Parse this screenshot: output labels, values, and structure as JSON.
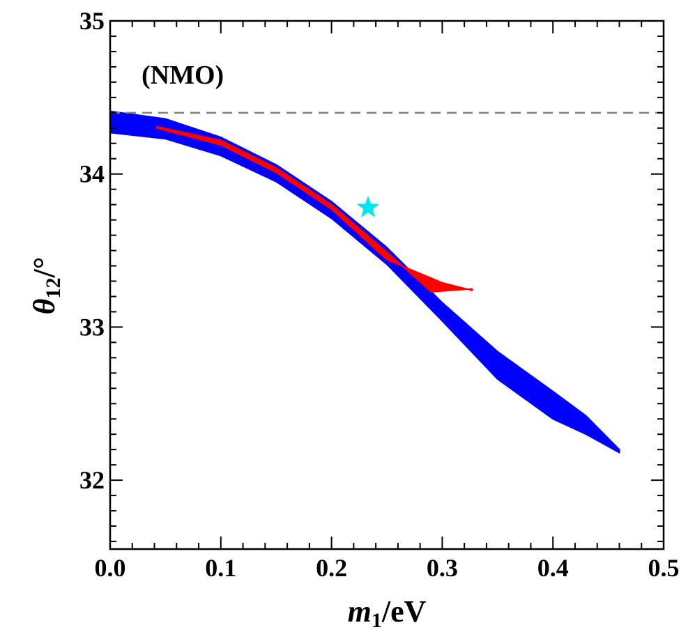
{
  "chart_data": {
    "type": "scatter",
    "xlabel": {
      "main": "m",
      "sub": "1",
      "unit": "/eV"
    },
    "ylabel": {
      "main": "θ",
      "sub": "12",
      "unit": "/°"
    },
    "xlim": [
      0.0,
      0.5
    ],
    "ylim": [
      31.55,
      35.0
    ],
    "x_ticks": [
      "0.0",
      "0.1",
      "0.2",
      "0.3",
      "0.4",
      "0.5"
    ],
    "y_ticks": [
      "32",
      "33",
      "34",
      "35"
    ],
    "annotation": "(NMO)",
    "grid": false,
    "reference_line": {
      "y": 34.4,
      "style": "dashed",
      "color": "#808080"
    },
    "series": [
      {
        "color": "#0000ff",
        "kind": "band",
        "upper": [
          [
            0.0,
            34.41
          ],
          [
            0.05,
            34.36
          ],
          [
            0.1,
            34.24
          ],
          [
            0.15,
            34.06
          ],
          [
            0.2,
            33.82
          ],
          [
            0.25,
            33.52
          ],
          [
            0.3,
            33.16
          ],
          [
            0.35,
            32.84
          ],
          [
            0.4,
            32.58
          ],
          [
            0.43,
            32.42
          ],
          [
            0.46,
            32.2
          ]
        ],
        "lower": [
          [
            0.0,
            34.27
          ],
          [
            0.05,
            34.23
          ],
          [
            0.1,
            34.12
          ],
          [
            0.15,
            33.95
          ],
          [
            0.2,
            33.71
          ],
          [
            0.25,
            33.41
          ],
          [
            0.3,
            33.04
          ],
          [
            0.35,
            32.66
          ],
          [
            0.4,
            32.4
          ],
          [
            0.43,
            32.3
          ],
          [
            0.46,
            32.18
          ]
        ]
      },
      {
        "color": "#ff0000",
        "kind": "band",
        "upper": [
          [
            0.042,
            34.31
          ],
          [
            0.1,
            34.22
          ],
          [
            0.15,
            34.04
          ],
          [
            0.2,
            33.8
          ],
          [
            0.25,
            33.49
          ],
          [
            0.29,
            33.23
          ],
          [
            0.327,
            33.25
          ]
        ],
        "lower": [
          [
            0.042,
            34.3
          ],
          [
            0.1,
            34.19
          ],
          [
            0.15,
            34.01
          ],
          [
            0.2,
            33.77
          ],
          [
            0.25,
            33.44
          ],
          [
            0.3,
            33.29
          ],
          [
            0.327,
            33.24
          ]
        ]
      }
    ],
    "best_fit": {
      "x": 0.233,
      "y": 33.78,
      "marker": "star",
      "color": "#00e5ee"
    }
  }
}
